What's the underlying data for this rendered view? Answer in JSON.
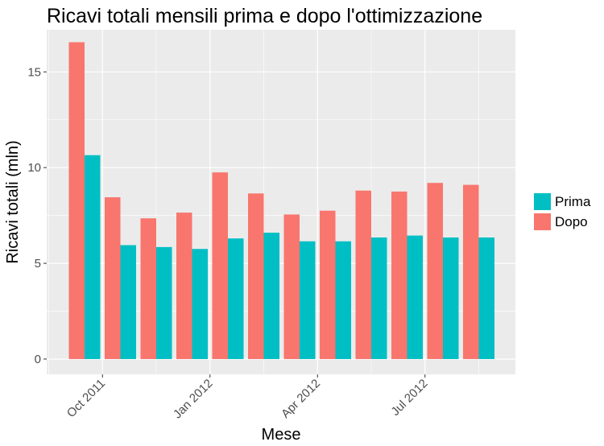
{
  "chart_data": {
    "type": "bar",
    "title": "Ricavi totali mensili prima e dopo l'ottimizzazione",
    "xlabel": "Mese",
    "ylabel": "Ricavi totali (mln)",
    "ylim": [
      -0.8,
      17.2
    ],
    "yticks": [
      0,
      5,
      10,
      15
    ],
    "x_axis": {
      "type": "date",
      "ticks": [
        "2011-10-01",
        "2012-01-01",
        "2012-04-01",
        "2012-07-01"
      ],
      "tick_labels": [
        "Oct 2011",
        "Jan 2012",
        "Apr 2012",
        "Jul 2012"
      ],
      "label_rotation_deg": 45
    },
    "grid": true,
    "legend_position": "right",
    "categories": [
      "2011-09",
      "2011-10",
      "2011-11",
      "2011-12",
      "2012-01",
      "2012-02",
      "2012-03",
      "2012-04",
      "2012-05",
      "2012-06",
      "2012-07",
      "2012-08"
    ],
    "series": [
      {
        "name": "Dopo",
        "color": "#F8766D",
        "values": [
          16.55,
          8.45,
          7.35,
          7.65,
          9.75,
          8.65,
          7.55,
          7.75,
          8.8,
          8.75,
          9.2,
          9.1
        ]
      },
      {
        "name": "Prima",
        "color": "#00BFC4",
        "values": [
          10.65,
          5.95,
          5.85,
          5.75,
          6.3,
          6.6,
          6.15,
          6.15,
          6.35,
          6.45,
          6.35,
          6.35
        ]
      }
    ],
    "legend_order": [
      "Prima",
      "Dopo"
    ]
  }
}
